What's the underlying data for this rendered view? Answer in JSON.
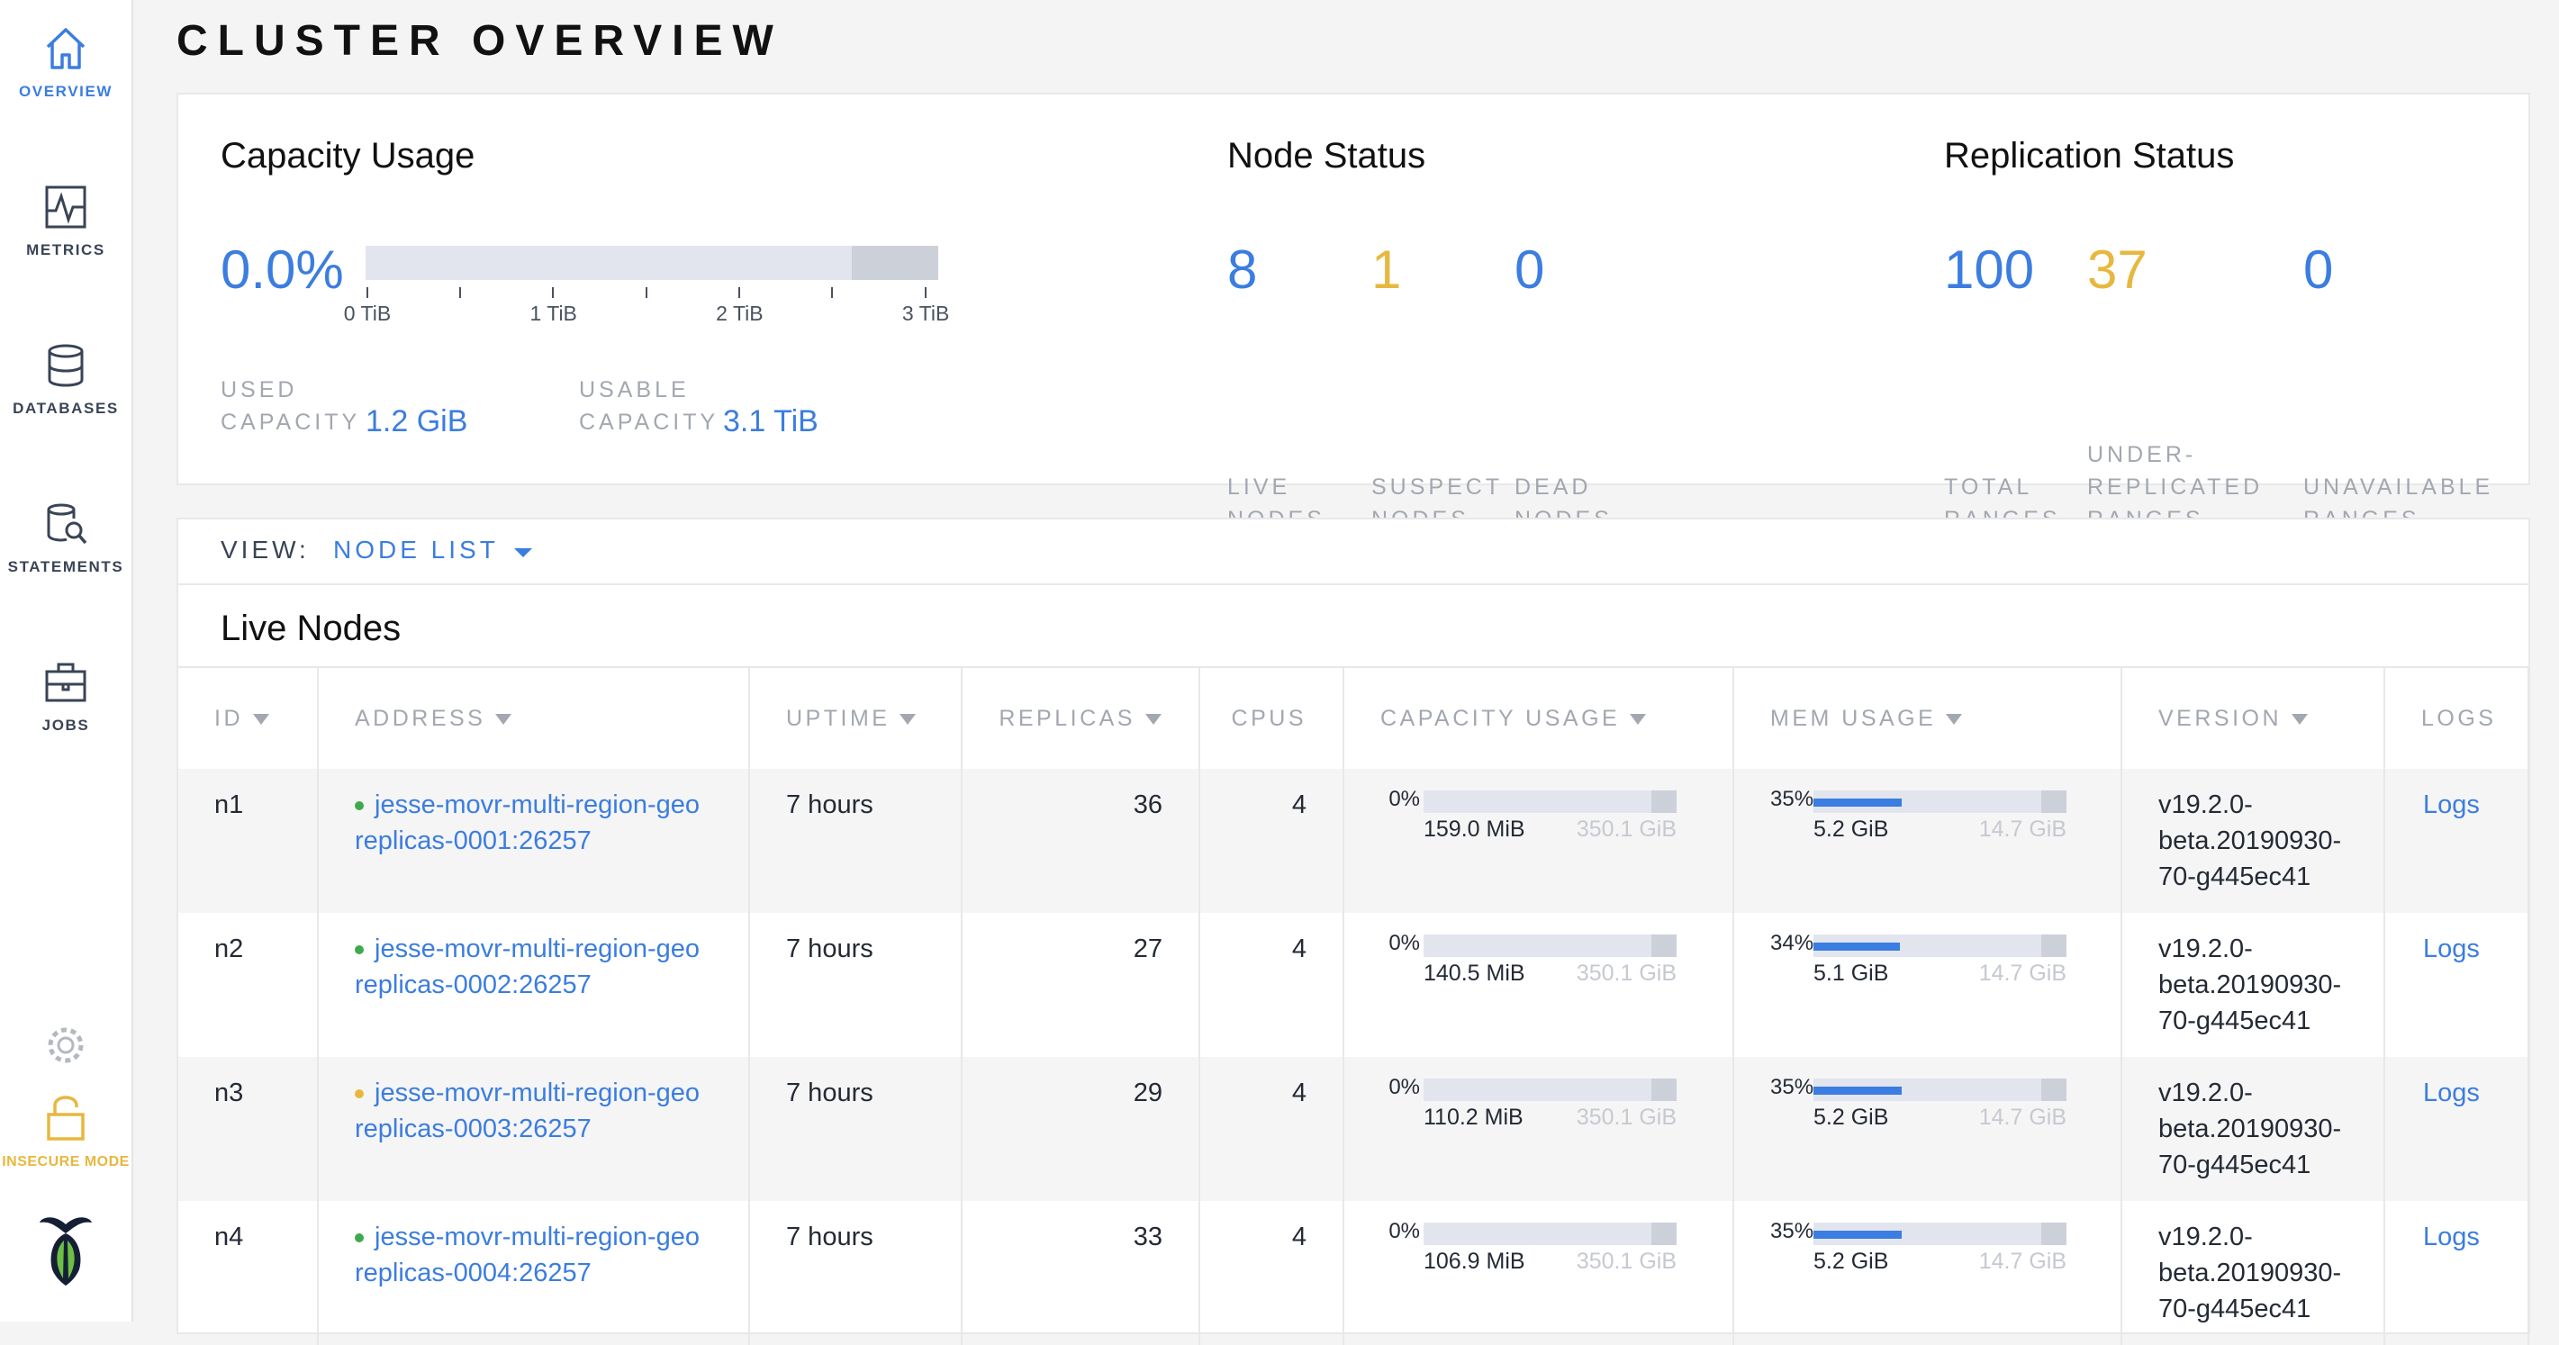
{
  "sidebar": {
    "items": [
      "OVERVIEW",
      "METRICS",
      "DATABASES",
      "STATEMENTS",
      "JOBS"
    ],
    "insecure": "INSECURE MODE"
  },
  "header": {
    "title": "CLUSTER OVERVIEW"
  },
  "capacity": {
    "title": "Capacity Usage",
    "percent": "0.0%",
    "tick_labels": [
      "0 TiB",
      "1 TiB",
      "2 TiB",
      "3 TiB"
    ],
    "used_label": "USED CAPACITY",
    "used_value": "1.2 GiB",
    "usable_label": "USABLE CAPACITY",
    "usable_value": "3.1 TiB"
  },
  "node_status": {
    "title": "Node Status",
    "stats": [
      {
        "value": 8,
        "label": "LIVE NODES",
        "color": "#3b7de0"
      },
      {
        "value": 1,
        "label": "SUSPECT NODES",
        "color": "#e7b83f"
      },
      {
        "value": 0,
        "label": "DEAD NODES",
        "color": "#3b7de0"
      }
    ]
  },
  "replication_status": {
    "title": "Replication Status",
    "stats": [
      {
        "value": 100,
        "label": "TOTAL RANGES",
        "color": "#3b7de0"
      },
      {
        "value": 37,
        "label": "UNDER-REPLICATED RANGES",
        "color": "#e7b83f"
      },
      {
        "value": 0,
        "label": "UNAVAILABLE RANGES",
        "color": "#3b7de0"
      }
    ]
  },
  "view": {
    "label": "VIEW:",
    "value": "NODE LIST"
  },
  "live_nodes": {
    "title": "Live Nodes",
    "columns": [
      "ID",
      "ADDRESS",
      "UPTIME",
      "REPLICAS",
      "CPUS",
      "CAPACITY USAGE",
      "MEM USAGE",
      "VERSION",
      "LOGS"
    ],
    "rows": [
      {
        "id": "n1",
        "status_color": "#3fa94f",
        "address": "jesse-movr-multi-region-geo replicas-0001:26257",
        "uptime": "7 hours",
        "replicas": 36,
        "cpus": 4,
        "capacity_percent": "0%",
        "capacity_used": "159.0 MiB",
        "capacity_total": "350.1 GiB",
        "mem_percent": "35%",
        "mem_used": "5.2 GiB",
        "mem_total": "14.7 GiB",
        "version": "v19.2.0-beta.20190930-70-g445ec41",
        "logs": "Logs"
      },
      {
        "id": "n2",
        "status_color": "#3fa94f",
        "address": "jesse-movr-multi-region-geo replicas-0002:26257",
        "uptime": "7 hours",
        "replicas": 27,
        "cpus": 4,
        "capacity_percent": "0%",
        "capacity_used": "140.5 MiB",
        "capacity_total": "350.1 GiB",
        "mem_percent": "34%",
        "mem_used": "5.1 GiB",
        "mem_total": "14.7 GiB",
        "version": "v19.2.0-beta.20190930-70-g445ec41",
        "logs": "Logs"
      },
      {
        "id": "n3",
        "status_color": "#e7b83f",
        "address": "jesse-movr-multi-region-geo replicas-0003:26257",
        "uptime": "7 hours",
        "replicas": 29,
        "cpus": 4,
        "capacity_percent": "0%",
        "capacity_used": "110.2 MiB",
        "capacity_total": "350.1 GiB",
        "mem_percent": "35%",
        "mem_used": "5.2 GiB",
        "mem_total": "14.7 GiB",
        "version": "v19.2.0-beta.20190930-70-g445ec41",
        "logs": "Logs"
      },
      {
        "id": "n4",
        "status_color": "#3fa94f",
        "address": "jesse-movr-multi-region-geo replicas-0004:26257",
        "uptime": "7 hours",
        "replicas": 33,
        "cpus": 4,
        "capacity_percent": "0%",
        "capacity_used": "106.9 MiB",
        "capacity_total": "350.1 GiB",
        "mem_percent": "35%",
        "mem_used": "5.2 GiB",
        "mem_total": "14.7 GiB",
        "version": "v19.2.0-beta.20190930-70-g445ec41",
        "logs": "Logs"
      }
    ]
  }
}
